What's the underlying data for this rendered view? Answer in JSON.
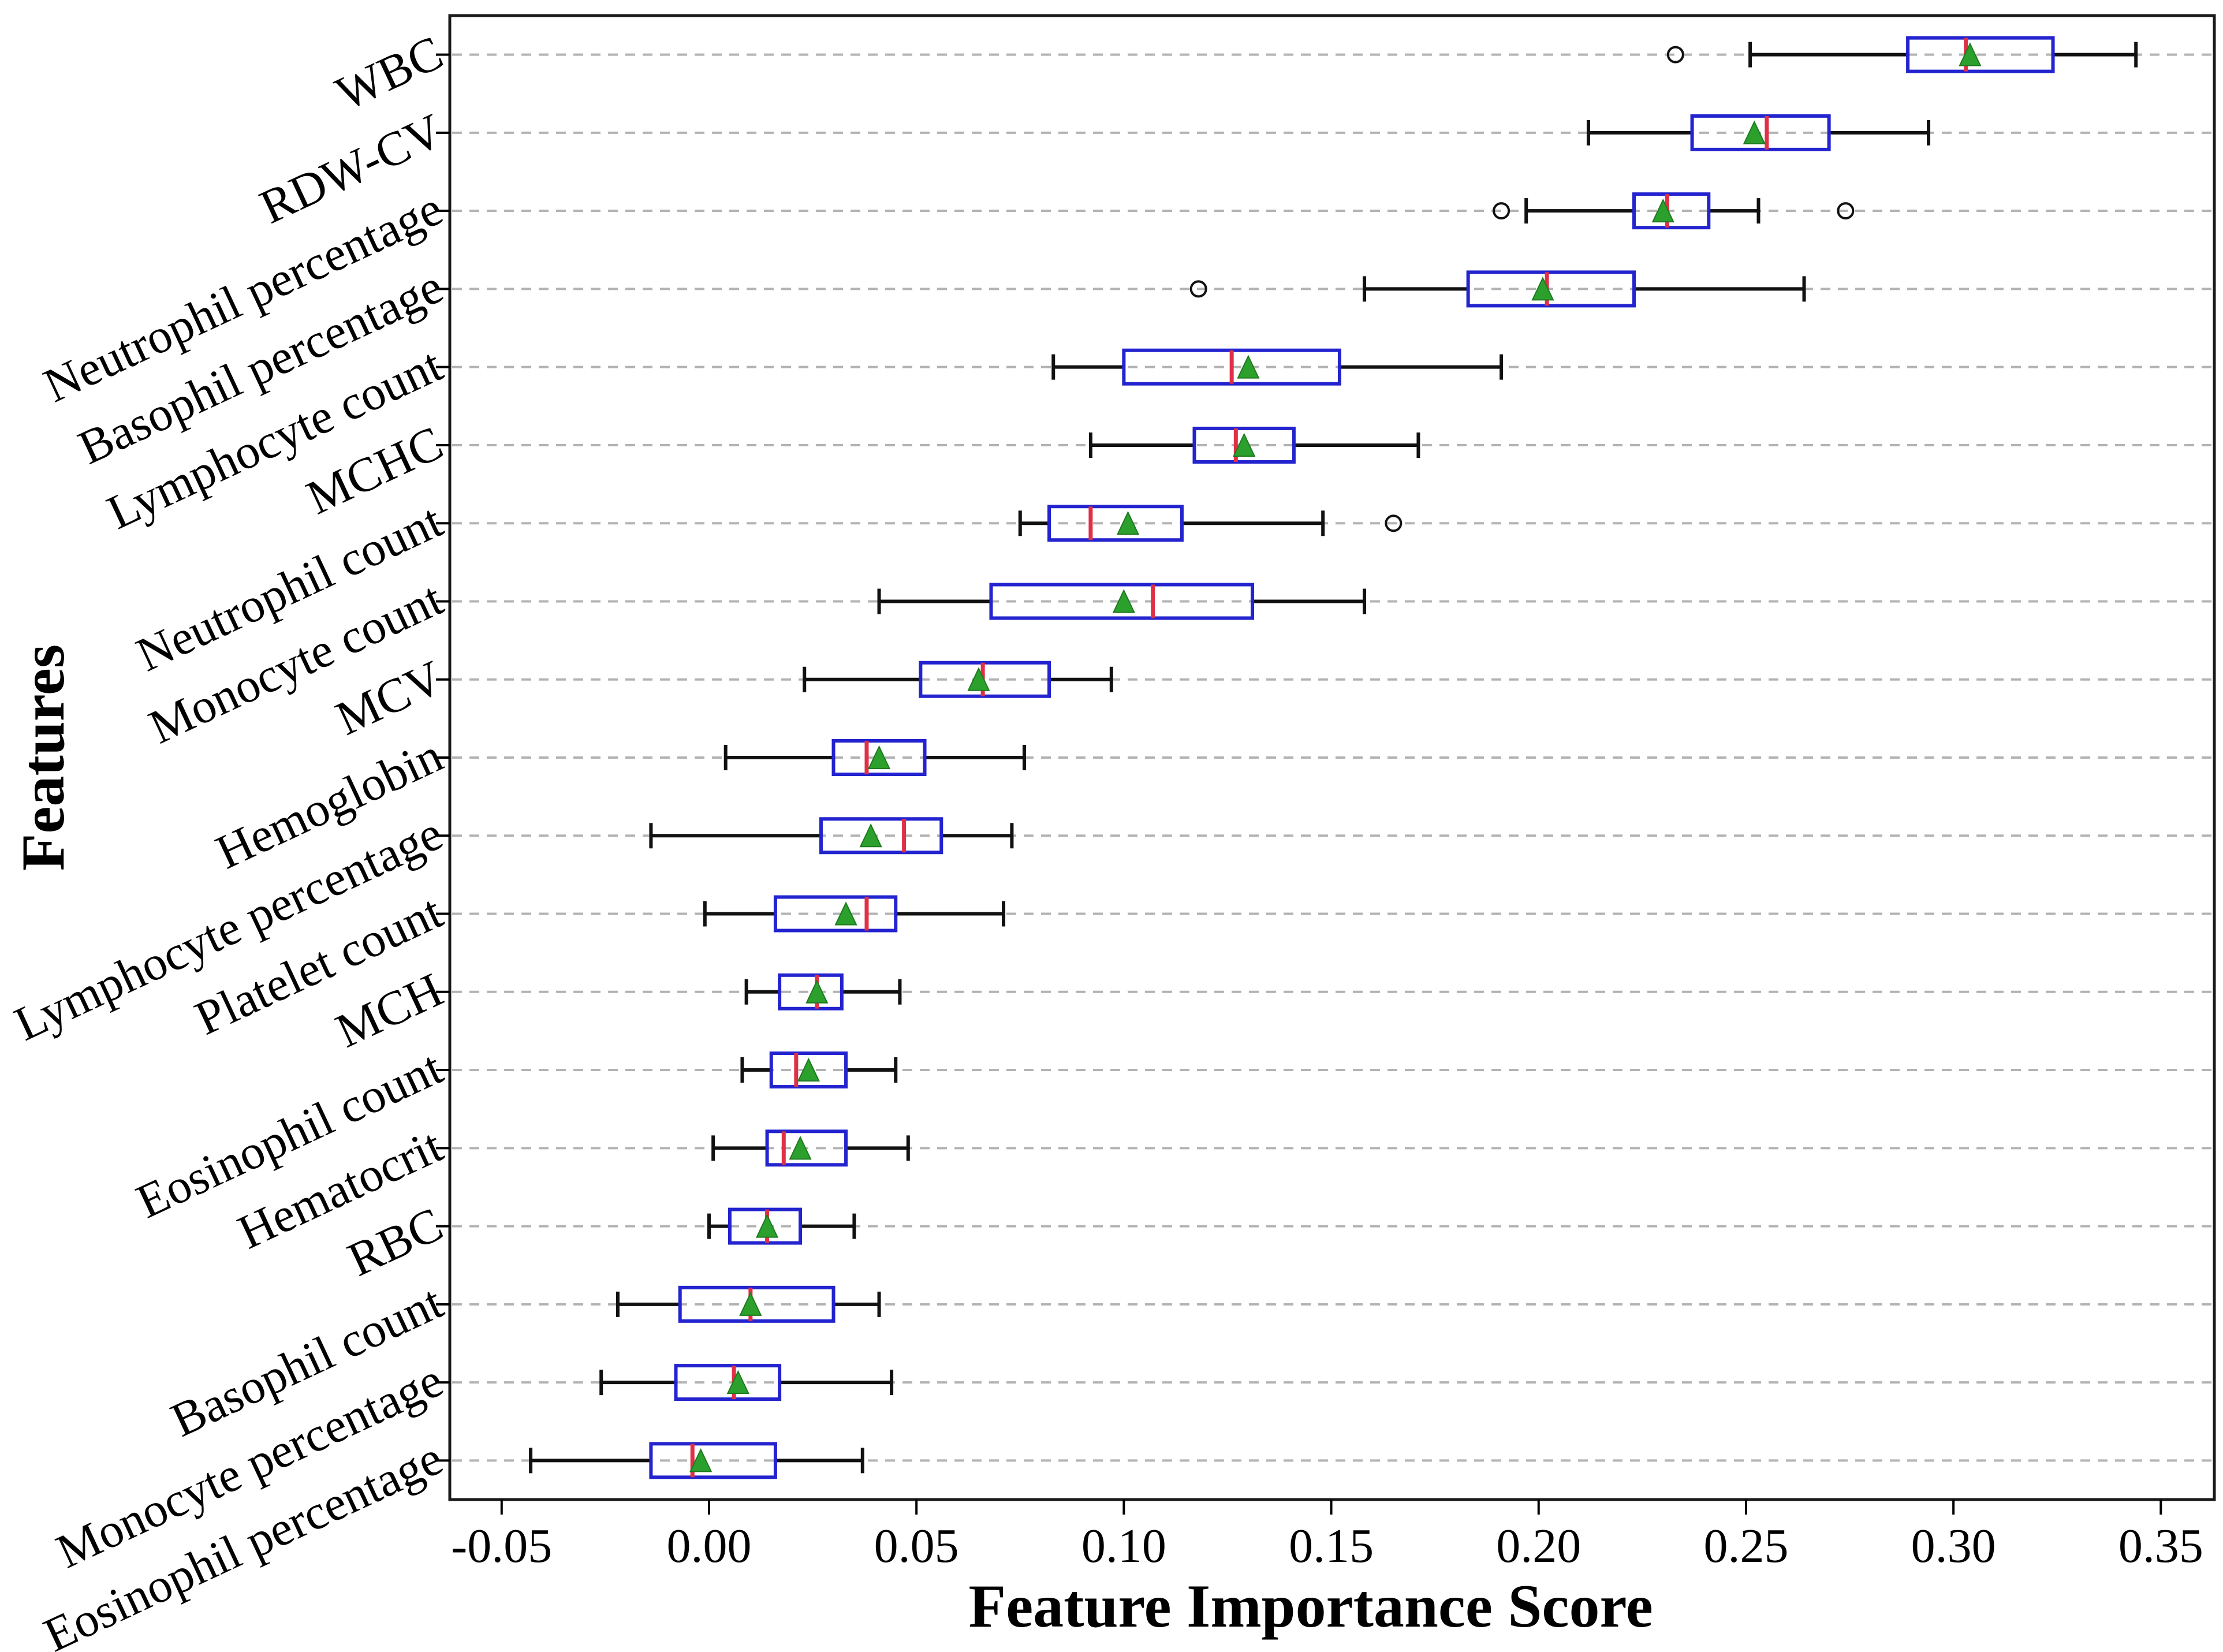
{
  "figure": {
    "x_axis_title": "Feature Importance Score",
    "y_axis_title": "Features"
  },
  "chart_data": {
    "type": "boxplot",
    "orientation": "horizontal",
    "title": "",
    "xlabel": "Feature Importance Score",
    "ylabel": "Features",
    "xlim": [
      -0.0625,
      0.3629
    ],
    "xticks": [
      -0.05,
      0.0,
      0.05,
      0.1,
      0.15,
      0.2,
      0.25,
      0.3,
      0.35
    ],
    "xtick_labels": [
      "-0.05",
      "0.00",
      "0.05",
      "0.10",
      "0.15",
      "0.20",
      "0.25",
      "0.30",
      "0.35"
    ],
    "ytick_rotation_deg": 25,
    "grid": "horizontal dashed line through each category",
    "legend": null,
    "marker_semantics": {
      "box": "interquartile range (Q1-Q3)",
      "red_line": "median",
      "green_triangle": "mean",
      "circle": "outlier"
    },
    "colors": {
      "box_edge": "#2323cf",
      "median": "#e03048",
      "mean_marker": "#2ca02c",
      "mean_marker_edge": "#1d7a1f",
      "whisker": "#111111",
      "outlier": "#111111",
      "gridline": "#b3b3b3",
      "frame": "#1a1a1a",
      "background": "#ffffff"
    },
    "rows": [
      {
        "label": "WBC",
        "whislo": 0.251,
        "q1": 0.289,
        "med": 0.303,
        "q3": 0.324,
        "whishi": 0.344,
        "mean": 0.304,
        "fliers": [
          0.233
        ]
      },
      {
        "label": "RDW-CV",
        "whislo": 0.212,
        "q1": 0.237,
        "med": 0.255,
        "q3": 0.27,
        "whishi": 0.294,
        "mean": 0.252,
        "fliers": []
      },
      {
        "label": "Neutrophil percentage",
        "whislo": 0.197,
        "q1": 0.223,
        "med": 0.231,
        "q3": 0.241,
        "whishi": 0.253,
        "mean": 0.23,
        "fliers": [
          0.191,
          0.274
        ]
      },
      {
        "label": "Basophil percentage",
        "whislo": 0.158,
        "q1": 0.183,
        "med": 0.202,
        "q3": 0.223,
        "whishi": 0.264,
        "mean": 0.201,
        "fliers": [
          0.118
        ]
      },
      {
        "label": "Lymphocyte count",
        "whislo": 0.083,
        "q1": 0.1,
        "med": 0.126,
        "q3": 0.152,
        "whishi": 0.191,
        "mean": 0.13,
        "fliers": []
      },
      {
        "label": "MCHC",
        "whislo": 0.092,
        "q1": 0.117,
        "med": 0.127,
        "q3": 0.141,
        "whishi": 0.171,
        "mean": 0.129,
        "fliers": []
      },
      {
        "label": "Neutrophil count",
        "whislo": 0.075,
        "q1": 0.082,
        "med": 0.092,
        "q3": 0.114,
        "whishi": 0.148,
        "mean": 0.101,
        "fliers": [
          0.165
        ]
      },
      {
        "label": "Monocyte count",
        "whislo": 0.041,
        "q1": 0.068,
        "med": 0.107,
        "q3": 0.131,
        "whishi": 0.158,
        "mean": 0.1,
        "fliers": []
      },
      {
        "label": "MCV",
        "whislo": 0.023,
        "q1": 0.051,
        "med": 0.066,
        "q3": 0.082,
        "whishi": 0.097,
        "mean": 0.065,
        "fliers": []
      },
      {
        "label": "Hemoglobin",
        "whislo": 0.004,
        "q1": 0.03,
        "med": 0.038,
        "q3": 0.052,
        "whishi": 0.076,
        "mean": 0.041,
        "fliers": []
      },
      {
        "label": "Lymphocyte percentage",
        "whislo": -0.014,
        "q1": 0.027,
        "med": 0.047,
        "q3": 0.056,
        "whishi": 0.073,
        "mean": 0.039,
        "fliers": []
      },
      {
        "label": "Platelet count",
        "whislo": -0.001,
        "q1": 0.016,
        "med": 0.038,
        "q3": 0.045,
        "whishi": 0.071,
        "mean": 0.033,
        "fliers": []
      },
      {
        "label": "MCH",
        "whislo": 0.009,
        "q1": 0.017,
        "med": 0.026,
        "q3": 0.032,
        "whishi": 0.046,
        "mean": 0.026,
        "fliers": []
      },
      {
        "label": "Eosinophil count",
        "whislo": 0.008,
        "q1": 0.015,
        "med": 0.021,
        "q3": 0.033,
        "whishi": 0.045,
        "mean": 0.024,
        "fliers": []
      },
      {
        "label": "Hematocrit",
        "whislo": 0.001,
        "q1": 0.014,
        "med": 0.018,
        "q3": 0.033,
        "whishi": 0.048,
        "mean": 0.022,
        "fliers": []
      },
      {
        "label": "RBC",
        "whislo": 0.0,
        "q1": 0.005,
        "med": 0.014,
        "q3": 0.022,
        "whishi": 0.035,
        "mean": 0.014,
        "fliers": []
      },
      {
        "label": "Basophil count",
        "whislo": -0.022,
        "q1": -0.007,
        "med": 0.01,
        "q3": 0.03,
        "whishi": 0.041,
        "mean": 0.01,
        "fliers": []
      },
      {
        "label": "Monocyte percentage",
        "whislo": -0.026,
        "q1": -0.008,
        "med": 0.006,
        "q3": 0.017,
        "whishi": 0.044,
        "mean": 0.007,
        "fliers": []
      },
      {
        "label": "Eosinophil percentage",
        "whislo": -0.043,
        "q1": -0.014,
        "med": -0.004,
        "q3": 0.016,
        "whishi": 0.037,
        "mean": -0.002,
        "fliers": []
      }
    ]
  }
}
